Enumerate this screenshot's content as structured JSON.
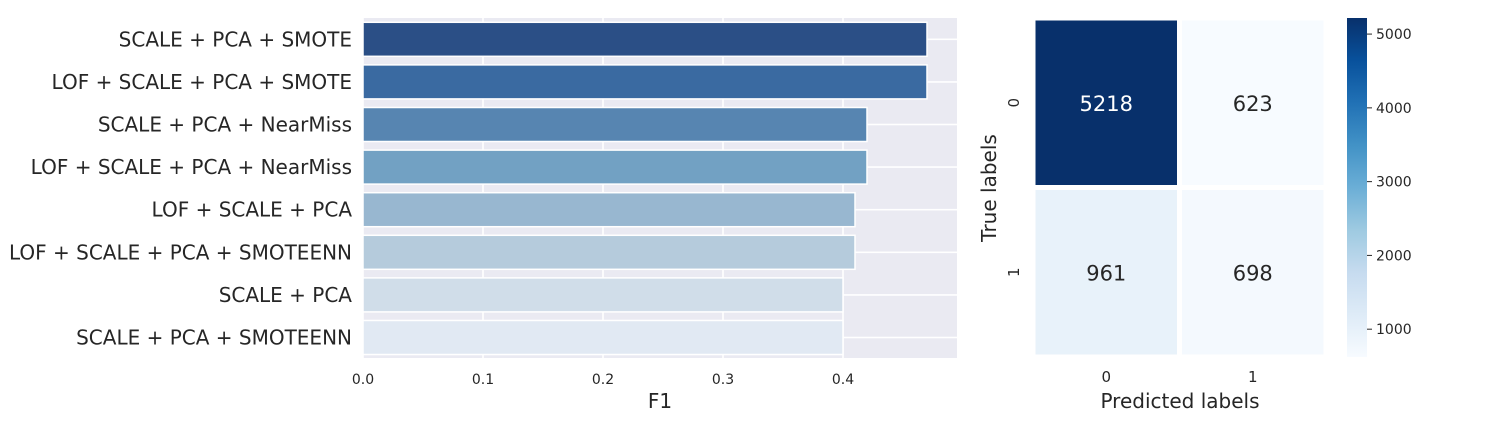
{
  "chart_data": [
    {
      "type": "bar",
      "orientation": "horizontal",
      "categories": [
        "SCALE + PCA + SMOTE",
        "LOF + SCALE + PCA + SMOTE",
        "SCALE + PCA + NearMiss",
        "LOF + SCALE + PCA + NearMiss",
        "LOF + SCALE + PCA",
        "LOF + SCALE + PCA + SMOTEENN",
        "SCALE + PCA",
        "SCALE + PCA + SMOTEENN"
      ],
      "values": [
        0.47,
        0.47,
        0.42,
        0.42,
        0.41,
        0.41,
        0.4,
        0.4
      ],
      "xlabel": "F1",
      "ylabel": "",
      "xlim": [
        0,
        0.49
      ],
      "xticks": [
        "0.0",
        "0.1",
        "0.2",
        "0.3",
        "0.4"
      ],
      "grid": true,
      "bar_colors": [
        "#2b4f86",
        "#3a6aa1",
        "#5785b1",
        "#72a1c3",
        "#98b7d0",
        "#b5cbdc",
        "#d0dde9",
        "#e1e9f3"
      ]
    },
    {
      "type": "heatmap",
      "x_categories": [
        "0",
        "1"
      ],
      "y_categories": [
        "0",
        "1"
      ],
      "values": [
        [
          5218,
          623
        ],
        [
          961,
          698
        ]
      ],
      "xlabel": "Predicted labels",
      "ylabel": "True labels",
      "colorbar": {
        "min": 623,
        "max": 5218,
        "ticks": [
          "1000",
          "2000",
          "3000",
          "4000",
          "5000"
        ]
      },
      "colormap": "Blues"
    }
  ]
}
